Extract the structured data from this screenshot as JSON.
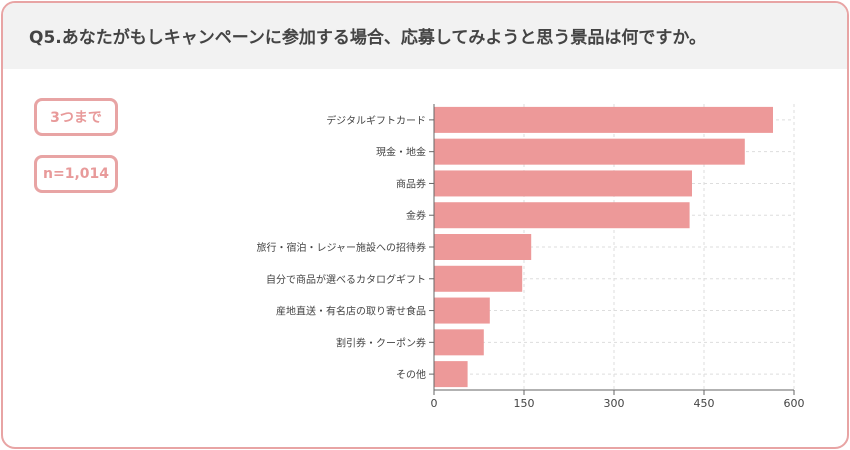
{
  "header": {
    "title": "Q5.あなたがもしキャンペーンに参加する場合、応募してみようと思う景品は何ですか。"
  },
  "badges": {
    "answer_limit": "3つまで",
    "sample_size": "n=1,014"
  },
  "colors": {
    "bar": "#ed9999",
    "border": "#e8a4a4",
    "header_bg": "#f2f2f2",
    "grid": "#dddddd"
  },
  "chart_data": {
    "type": "bar",
    "orientation": "horizontal",
    "categories": [
      "デジタルギフトカード",
      "現金・地金",
      "商品券",
      "金券",
      "旅行・宿泊・レジャー施設への招待券",
      "自分で商品が選べるカタログギフト",
      "産地直送・有名店の取り寄せ食品",
      "割引券・クーポン券",
      "その他"
    ],
    "values": [
      565,
      518,
      430,
      426,
      162,
      147,
      93,
      83,
      56
    ],
    "xlim": [
      0,
      600
    ],
    "xticks": [
      0,
      150,
      300,
      450,
      600
    ],
    "grid": true,
    "legend": "none"
  }
}
